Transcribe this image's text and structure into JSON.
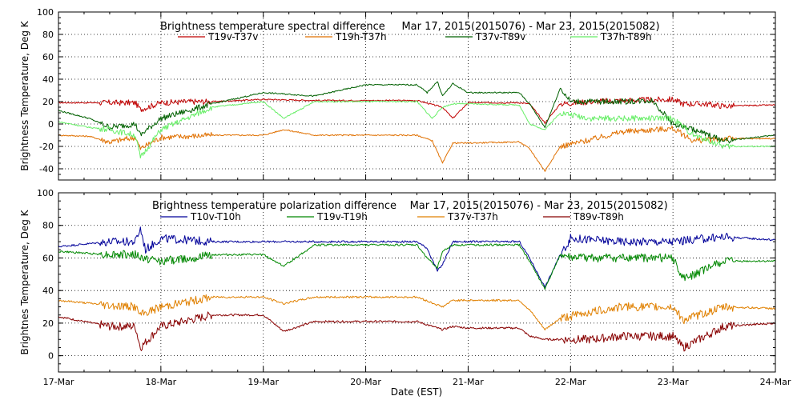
{
  "figure": {
    "xlabel": "Date (EST)",
    "x_categories": [
      "17-Mar",
      "18-Mar",
      "19-Mar",
      "20-Mar",
      "21-Mar",
      "22-Mar",
      "23-Mar",
      "24-Mar"
    ]
  },
  "chart_data": [
    {
      "type": "line",
      "title": "Brightness temperature spectral difference     Mar 17, 2015(2015076) - Mar 23, 2015(2015082)",
      "xlabel": "",
      "ylabel": "Brightness Temperature, Deg K",
      "x_unit": "days since 17-Mar 00:00",
      "xlim": [
        0,
        7
      ],
      "ylim": [
        -50,
        100
      ],
      "y_ticks": [
        -40,
        -20,
        0,
        20,
        40,
        60,
        80,
        100
      ],
      "grid": true,
      "series": [
        {
          "name": "T19v-T37v",
          "color": "#c00000",
          "x": [
            0,
            0.5,
            0.75,
            0.8,
            1.0,
            1.3,
            1.5,
            2.0,
            2.5,
            3.0,
            3.5,
            3.75,
            3.85,
            4.0,
            4.5,
            4.6,
            4.75,
            4.9,
            5.2,
            5.5,
            6.0,
            6.1,
            6.3,
            6.5,
            7.0
          ],
          "y": [
            19,
            19,
            19,
            13,
            19,
            20,
            20,
            22,
            21,
            21,
            21,
            15,
            5,
            19,
            19,
            18,
            1,
            18,
            20,
            21,
            22,
            18,
            18,
            16,
            17
          ]
        },
        {
          "name": "T19h-T37h",
          "color": "#e07000",
          "x": [
            0,
            0.3,
            0.5,
            0.75,
            0.8,
            1.0,
            1.5,
            2.0,
            2.2,
            2.5,
            3.0,
            3.5,
            3.65,
            3.75,
            3.85,
            4.0,
            4.5,
            4.6,
            4.75,
            4.9,
            5.2,
            5.5,
            6.0,
            6.2,
            6.5,
            7.0
          ],
          "y": [
            -10,
            -11,
            -16,
            -12,
            -22,
            -12,
            -10,
            -10,
            -5,
            -10,
            -10,
            -10,
            -15,
            -35,
            -17,
            -17,
            -16,
            -22,
            -42,
            -20,
            -14,
            -7,
            -4,
            -15,
            -13,
            -13
          ]
        },
        {
          "name": "T37v-T89v",
          "color": "#006000",
          "x": [
            0,
            0.3,
            0.5,
            0.75,
            0.8,
            1.0,
            1.5,
            2.0,
            2.5,
            3.0,
            3.5,
            3.6,
            3.7,
            3.75,
            3.85,
            4.0,
            4.5,
            4.6,
            4.75,
            4.9,
            5.0,
            5.2,
            5.5,
            5.8,
            6.0,
            6.2,
            6.5,
            7.0
          ],
          "y": [
            12,
            5,
            -3,
            0,
            -10,
            5,
            18,
            28,
            25,
            35,
            35,
            28,
            38,
            25,
            36,
            28,
            28,
            18,
            -3,
            32,
            20,
            20,
            20,
            21,
            0,
            -5,
            -15,
            -10
          ]
        },
        {
          "name": "T37h-T89h",
          "color": "#66ee66",
          "x": [
            0,
            0.3,
            0.5,
            0.75,
            0.8,
            1.0,
            1.5,
            2.0,
            2.2,
            2.5,
            3.0,
            3.5,
            3.65,
            3.75,
            3.85,
            4.0,
            4.5,
            4.6,
            4.75,
            4.9,
            5.2,
            5.5,
            6.0,
            6.2,
            6.5,
            7.0
          ],
          "y": [
            2,
            -3,
            -5,
            -10,
            -30,
            -5,
            15,
            20,
            5,
            20,
            20,
            20,
            5,
            15,
            18,
            18,
            17,
            0,
            -5,
            10,
            5,
            5,
            5,
            -10,
            -20,
            -20
          ]
        }
      ]
    },
    {
      "type": "line",
      "title": "Brightness temperature polarization difference    Mar 17, 2015(2015076) - Mar 23, 2015(2015082)",
      "xlabel": "Date (EST)",
      "ylabel": "Brightnes Temperature, Deg K",
      "x_unit": "days since 17-Mar 00:00",
      "xlim": [
        0,
        7
      ],
      "ylim": [
        -10,
        100
      ],
      "y_ticks": [
        0,
        20,
        40,
        60,
        80,
        100
      ],
      "grid": true,
      "series": [
        {
          "name": "T10v-T10h",
          "color": "#000099",
          "x": [
            0,
            0.5,
            0.75,
            0.8,
            0.85,
            1.0,
            1.5,
            2.0,
            2.5,
            3.0,
            3.5,
            3.6,
            3.7,
            3.75,
            3.85,
            4.0,
            4.5,
            4.6,
            4.75,
            4.9,
            5.0,
            5.5,
            6.0,
            6.5,
            7.0
          ],
          "y": [
            67,
            70,
            70,
            78,
            65,
            72,
            70,
            70,
            70,
            70,
            70,
            66,
            52,
            56,
            70,
            70,
            70,
            60,
            42,
            62,
            72,
            70,
            70,
            73,
            71
          ]
        },
        {
          "name": "T19v-T19h",
          "color": "#008800",
          "x": [
            0,
            0.5,
            0.75,
            0.8,
            1.0,
            1.3,
            1.5,
            2.0,
            2.2,
            2.5,
            3.0,
            3.5,
            3.6,
            3.7,
            3.75,
            3.85,
            4.0,
            4.5,
            4.6,
            4.75,
            4.9,
            5.0,
            5.5,
            6.0,
            6.1,
            6.5,
            7.0
          ],
          "y": [
            64,
            62,
            62,
            60,
            58,
            60,
            62,
            62,
            55,
            68,
            68,
            68,
            60,
            54,
            64,
            68,
            68,
            68,
            58,
            41,
            62,
            60,
            60,
            60,
            47,
            58,
            58
          ]
        },
        {
          "name": "T37v-T37h",
          "color": "#e08000",
          "x": [
            0,
            0.5,
            0.75,
            0.8,
            1.0,
            1.5,
            2.0,
            2.2,
            2.5,
            3.0,
            3.5,
            3.75,
            3.85,
            4.0,
            4.5,
            4.6,
            4.75,
            4.9,
            5.2,
            5.5,
            6.0,
            6.1,
            6.5,
            7.0
          ],
          "y": [
            34,
            31,
            30,
            25,
            30,
            36,
            36,
            32,
            36,
            36,
            36,
            30,
            34,
            34,
            34,
            28,
            16,
            23,
            27,
            30,
            30,
            22,
            30,
            29
          ]
        },
        {
          "name": "T89v-T89h",
          "color": "#880000",
          "x": [
            0,
            0.5,
            0.75,
            0.8,
            1.0,
            1.5,
            2.0,
            2.2,
            2.5,
            3.0,
            3.5,
            3.75,
            3.85,
            4.0,
            4.5,
            4.6,
            4.75,
            4.9,
            5.2,
            5.5,
            6.0,
            6.1,
            6.5,
            7.0
          ],
          "y": [
            24,
            18,
            18,
            5,
            18,
            25,
            25,
            15,
            21,
            21,
            21,
            16,
            18,
            17,
            17,
            12,
            10,
            10,
            10,
            12,
            12,
            5,
            18,
            20
          ]
        }
      ]
    }
  ]
}
